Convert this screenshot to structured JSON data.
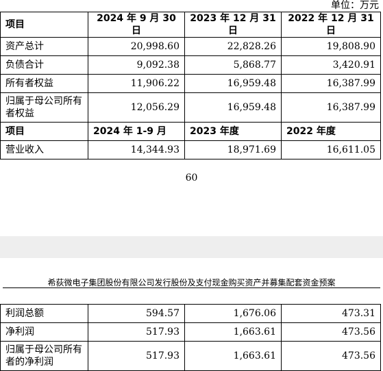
{
  "unit_label": "单位：万元",
  "balance": {
    "headers": [
      "项目",
      "2024 年 9 月 30 日",
      "2023 年 12 月 31 日",
      "2022 年 12 月 31 日"
    ],
    "rows": [
      {
        "label": "资产总计",
        "v1": "20,998.60",
        "v2": "22,828.26",
        "v3": "19,808.90"
      },
      {
        "label": "负债合计",
        "v1": "9,092.38",
        "v2": "5,868.77",
        "v3": "3,420.91"
      },
      {
        "label": "所有者权益",
        "v1": "11,906.22",
        "v2": "16,959.48",
        "v3": "16,387.99"
      },
      {
        "label": "归属于母公司所有者权益",
        "v1": "12,056.29",
        "v2": "16,959.48",
        "v3": "16,387.99"
      }
    ]
  },
  "income_headers": [
    "项目",
    "2024 年 1-9 月",
    "2023 年度",
    "2022 年度"
  ],
  "revenue": {
    "label": "营业收入",
    "v1": "14,344.93",
    "v2": "18,971.69",
    "v3": "16,611.05"
  },
  "page_number": "60",
  "running_header": {
    "company": "希荻微电子集团股份有限公司",
    "title": "发行股份及支付现金购买资产并募集配套资金预案"
  },
  "profit_rows": [
    {
      "label": "利润总额",
      "v1": "594.57",
      "v2": "1,676.06",
      "v3": "473.31"
    },
    {
      "label": "净利润",
      "v1": "517.93",
      "v2": "1,663.61",
      "v3": "473.56"
    },
    {
      "label": "归属于母公司所有者的净利润",
      "v1": "517.93",
      "v2": "1,663.61",
      "v3": "473.56"
    }
  ]
}
